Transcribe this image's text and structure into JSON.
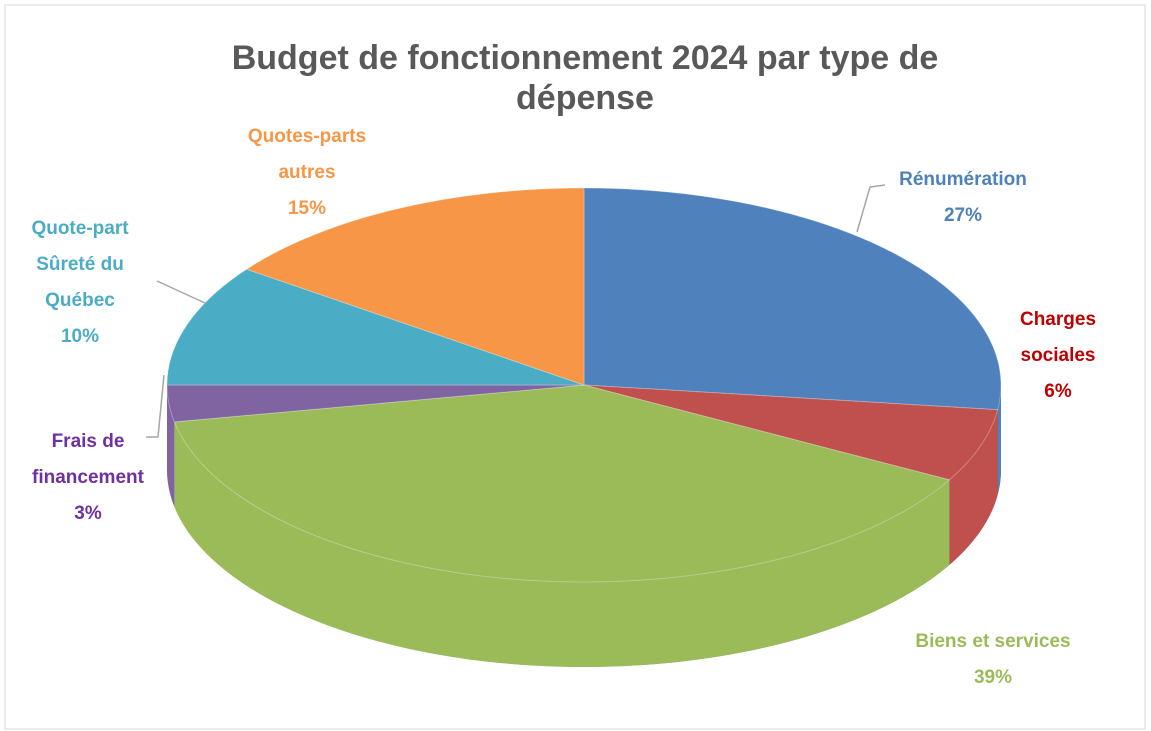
{
  "chart_data": {
    "type": "pie",
    "title": "Budget de fonctionnement 2024 par type de dépense",
    "categories": [
      "Rénumération",
      "Charges sociales",
      "Biens et services",
      "Frais de financement",
      "Quote-part Sûreté du Québec",
      "Quotes-parts autres"
    ],
    "values": [
      27,
      6,
      39,
      3,
      10,
      15
    ],
    "value_labels": [
      "27%",
      "6%",
      "39%",
      "3%",
      "10%",
      "15%"
    ],
    "colors": [
      "#4f81bd",
      "#c0504d",
      "#9bbb59",
      "#8064a2",
      "#4bacc6",
      "#f79646"
    ],
    "label_colors": [
      "#4f81bd",
      "#c00000",
      "#9bbb59",
      "#7030a0",
      "#4bacc6",
      "#f79646"
    ]
  }
}
